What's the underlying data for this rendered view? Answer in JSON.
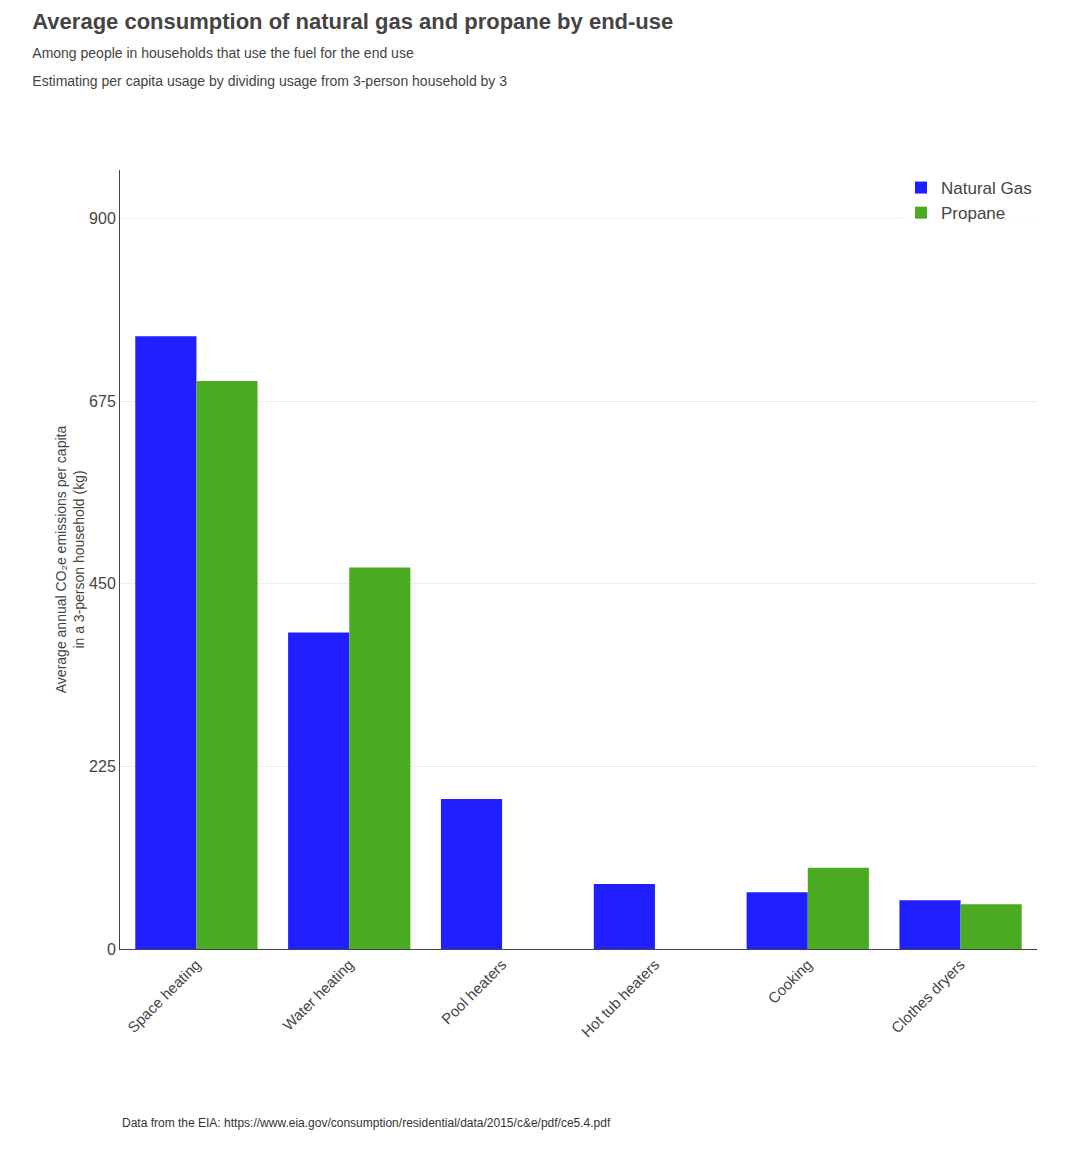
{
  "chart_data": {
    "type": "bar",
    "title": "Average consumption of natural gas and propane by end-use",
    "subtitle": [
      "Among people in households that use the fuel for the end use",
      "Estimating per capita usage by dividing usage from 3-person household by 3"
    ],
    "footnote": "Data from the EIA: https://www.eia.gov/consumption/residential/data/2015/c&e/pdf/ce5.4.pdf",
    "y_label": "Average annual CO₂e emissions per capita\nin a 3-person household (kg)",
    "categories": [
      "Space heating",
      "Water heating",
      "Pool heaters",
      "Hot tub heaters",
      "Cooking",
      "Clothes dryers"
    ],
    "series": [
      {
        "name": "Natural Gas",
        "color": "#1f1fff",
        "values": [
          755,
          390,
          185,
          80,
          70,
          60
        ]
      },
      {
        "name": "Propane",
        "color": "#4aaa22",
        "values": [
          700,
          470,
          null,
          null,
          100,
          55
        ]
      }
    ],
    "ylim": [
      0,
      960
    ],
    "yticks": [
      0,
      225,
      450,
      675,
      900
    ],
    "grid": true,
    "legend": "upper right"
  }
}
